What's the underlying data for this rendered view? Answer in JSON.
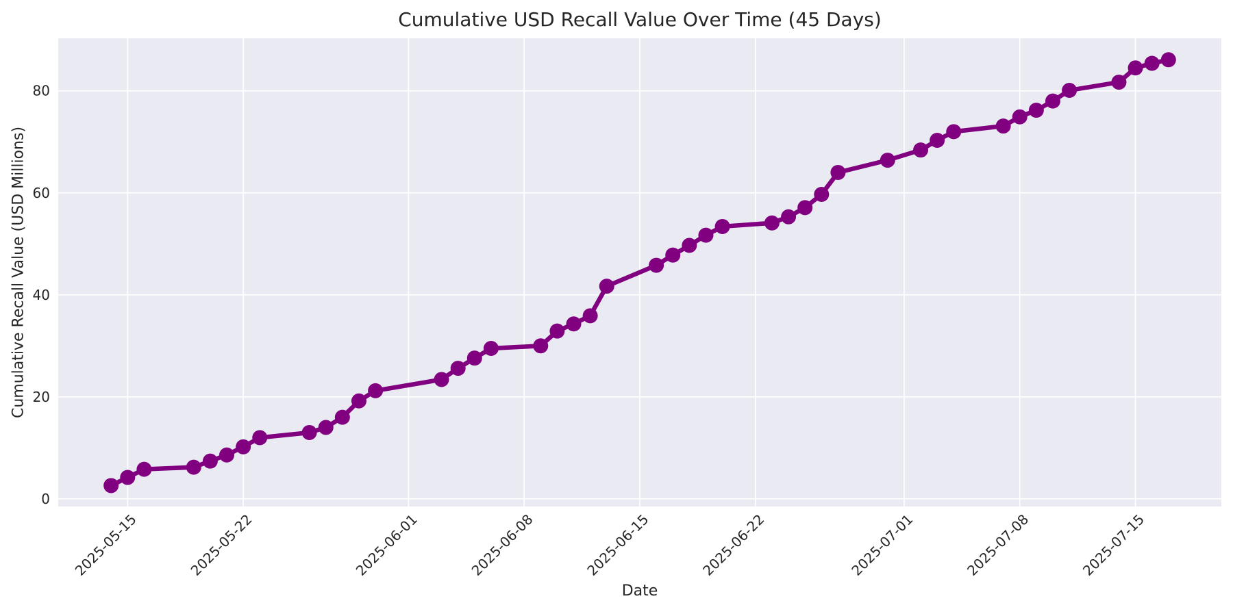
{
  "chart_data": {
    "type": "line",
    "title": "Cumulative USD Recall Value Over Time (45 Days)",
    "xlabel": "Date",
    "ylabel": "Cumulative Recall Value (USD Millions)",
    "legend": false,
    "grid": true,
    "x_tick_labels": [
      "2025-05-15",
      "2025-05-22",
      "2025-06-01",
      "2025-06-08",
      "2025-06-15",
      "2025-06-22",
      "2025-07-01",
      "2025-07-08",
      "2025-07-15"
    ],
    "y_ticks": [
      0,
      20,
      40,
      60,
      80
    ],
    "ylim": [
      -1.5,
      90.3
    ],
    "x_margin_frac": 0.05,
    "series": [
      {
        "name": "Cumulative USD Recall Value",
        "x": [
          "2025-05-14",
          "2025-05-15",
          "2025-05-16",
          "2025-05-19",
          "2025-05-20",
          "2025-05-21",
          "2025-05-22",
          "2025-05-23",
          "2025-05-26",
          "2025-05-27",
          "2025-05-28",
          "2025-05-29",
          "2025-05-30",
          "2025-06-03",
          "2025-06-04",
          "2025-06-05",
          "2025-06-06",
          "2025-06-09",
          "2025-06-10",
          "2025-06-11",
          "2025-06-12",
          "2025-06-13",
          "2025-06-16",
          "2025-06-17",
          "2025-06-18",
          "2025-06-19",
          "2025-06-20",
          "2025-06-23",
          "2025-06-24",
          "2025-06-25",
          "2025-06-26",
          "2025-06-27",
          "2025-06-30",
          "2025-07-02",
          "2025-07-03",
          "2025-07-04",
          "2025-07-07",
          "2025-07-08",
          "2025-07-09",
          "2025-07-10",
          "2025-07-11",
          "2025-07-14",
          "2025-07-15",
          "2025-07-16",
          "2025-07-17"
        ],
        "y": [
          2.6,
          4.2,
          5.8,
          6.2,
          7.4,
          8.6,
          10.2,
          12.0,
          13.0,
          14.0,
          16.0,
          19.2,
          21.2,
          23.4,
          25.6,
          27.6,
          29.5,
          30.0,
          32.9,
          34.3,
          35.9,
          41.7,
          45.8,
          47.8,
          49.7,
          51.7,
          53.4,
          54.1,
          55.3,
          57.1,
          59.7,
          64.0,
          66.4,
          68.4,
          70.3,
          72.0,
          73.1,
          74.9,
          76.2,
          78.0,
          80.1,
          81.7,
          84.5,
          85.4,
          86.1
        ]
      }
    ],
    "colors": {
      "line": "#800080",
      "marker": "#800080",
      "plot_background": "#EAEAF2",
      "figure_background": "#FFFFFF",
      "grid": "#FFFFFF",
      "text": "#262626"
    }
  }
}
